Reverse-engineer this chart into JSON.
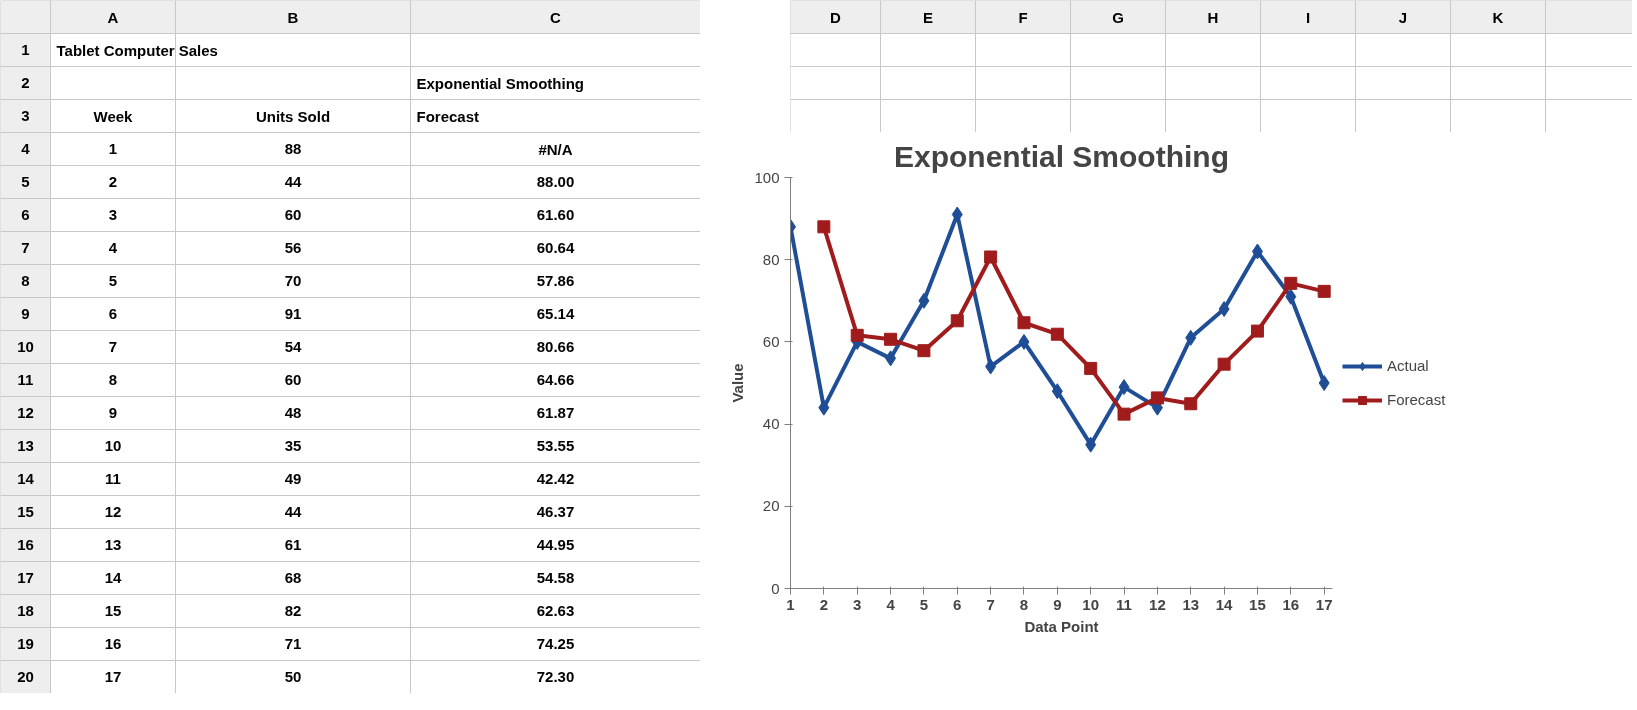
{
  "chart_data": {
    "type": "line",
    "title": "Exponential Smoothing",
    "xlabel": "Data Point",
    "ylabel": "Value",
    "categories": [
      "1",
      "2",
      "3",
      "4",
      "5",
      "6",
      "7",
      "8",
      "9",
      "10",
      "11",
      "12",
      "13",
      "14",
      "15",
      "16",
      "17"
    ],
    "series": [
      {
        "name": "Actual",
        "color": "#1f4e96",
        "marker": "diamond",
        "values": [
          88,
          44,
          60,
          56,
          70,
          91,
          54,
          60,
          48,
          35,
          49,
          44,
          61,
          68,
          82,
          71,
          50
        ]
      },
      {
        "name": "Forecast",
        "color": "#a01c1c",
        "marker": "square",
        "values": [
          null,
          88.0,
          61.6,
          60.64,
          57.86,
          65.14,
          80.66,
          64.66,
          61.87,
          53.55,
          42.42,
          46.37,
          44.95,
          54.58,
          62.63,
          74.25,
          72.3
        ]
      }
    ],
    "ylim": [
      0,
      100
    ],
    "yticks": [
      0,
      20,
      40,
      60,
      80,
      100
    ],
    "grid": false,
    "legend": "right",
    "line_style": "solid",
    "annotations": [
      "A",
      "B",
      "C",
      "D",
      "E",
      "F",
      "G",
      "H",
      "I",
      "J",
      "K",
      "1",
      "2",
      "3",
      "4",
      "5",
      "6",
      "7",
      "8",
      "9",
      "10",
      "11",
      "12",
      "13",
      "14",
      "15",
      "16",
      "17",
      "18",
      "19",
      "20",
      "Tablet Computer Sales",
      "Exponential Smoothing",
      "Week",
      "Units Sold",
      "Forecast",
      "88",
      "44",
      "60",
      "56",
      "70",
      "91",
      "54",
      "60",
      "48",
      "35",
      "49",
      "44",
      "61",
      "68",
      "82",
      "71",
      "50",
      "#N/A",
      "88.00",
      "61.60",
      "60.64",
      "57.86",
      "65.14",
      "80.66",
      "64.66",
      "61.87",
      "53.55",
      "42.42",
      "46.37",
      "44.95",
      "54.58",
      "62.63",
      "74.25",
      "72.30"
    ]
  }
}
